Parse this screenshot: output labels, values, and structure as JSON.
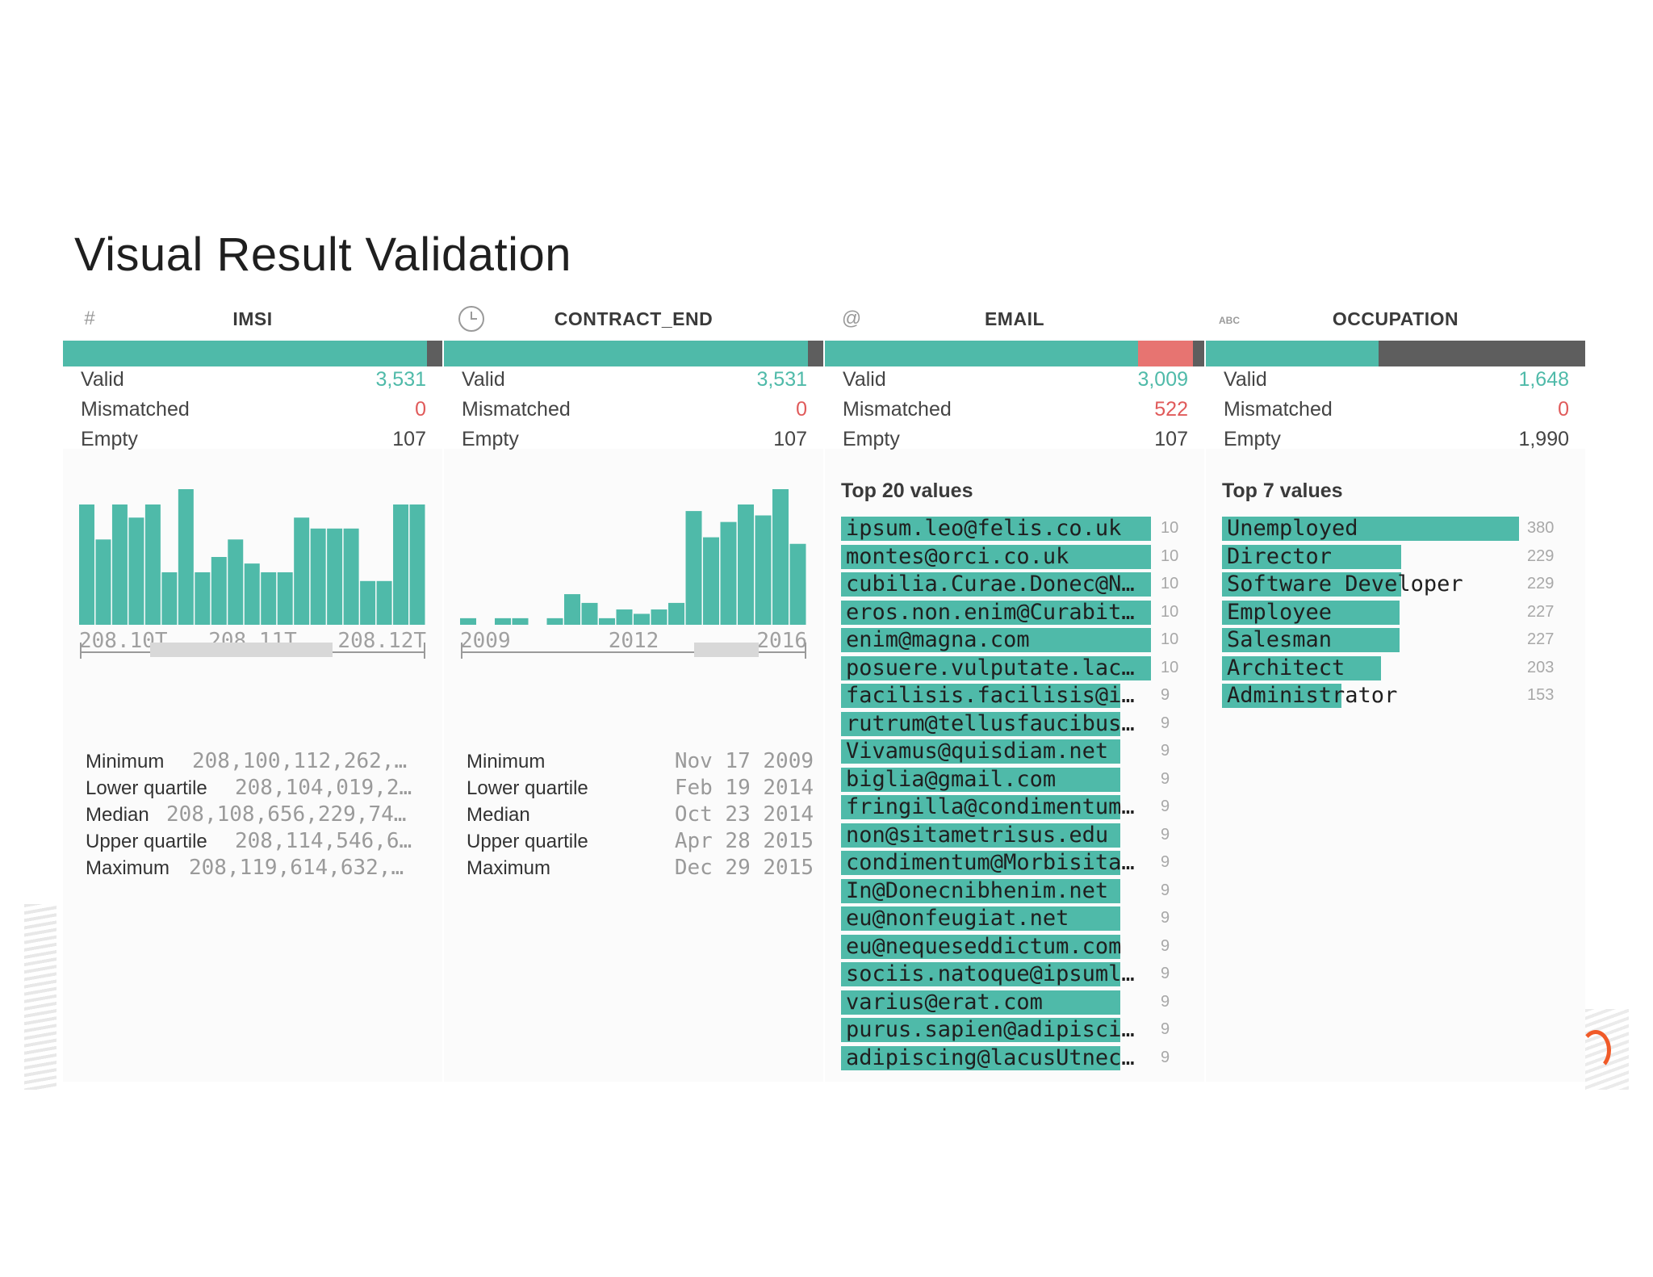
{
  "page_title": "Visual Result Validation",
  "colors": {
    "valid": "#4fbaa9",
    "mismatched": "#e77471",
    "empty": "#5e5e5e"
  },
  "columns": [
    {
      "type_icon": "hash-icon",
      "type_glyph": "#",
      "name": "IMSI",
      "quality": {
        "valid_fraction": 0.96,
        "mismatched_fraction": 0.0,
        "empty_fraction": 0.04
      },
      "stats": {
        "valid_label": "Valid",
        "valid": "3,531",
        "mismatched_label": "Mismatched",
        "mismatched": "0",
        "empty_label": "Empty",
        "empty": "107"
      },
      "histogram": {
        "values": [
          55,
          39,
          55,
          49,
          55,
          24,
          62,
          24,
          31,
          39,
          28,
          24,
          24,
          49,
          44,
          44,
          44,
          20,
          20,
          55,
          55
        ],
        "axis_labels": [
          "208.10T",
          "208.11T",
          "208.12T"
        ]
      },
      "summary": [
        {
          "label": "Minimum",
          "value": "208,100,112,262,…"
        },
        {
          "label": "Lower quartile",
          "value": "208,104,019,2…"
        },
        {
          "label": "Median",
          "value": "208,108,656,229,74…"
        },
        {
          "label": "Upper quartile",
          "value": "208,114,546,6…"
        },
        {
          "label": "Maximum",
          "value": "208,119,614,632,…"
        }
      ]
    },
    {
      "type_icon": "clock-icon",
      "type_glyph": "",
      "name": "CONTRACT_END",
      "quality": {
        "valid_fraction": 0.96,
        "mismatched_fraction": 0.0,
        "empty_fraction": 0.04
      },
      "stats": {
        "valid_label": "Valid",
        "valid": "3,531",
        "mismatched_label": "Mismatched",
        "mismatched": "0",
        "empty_label": "Empty",
        "empty": "107"
      },
      "histogram": {
        "values": [
          3,
          0,
          3,
          3,
          0,
          3,
          14,
          10,
          3,
          7,
          5,
          7,
          10,
          52,
          40,
          47,
          55,
          50,
          62,
          37
        ],
        "axis_labels": [
          "2009",
          "2012",
          "2016"
        ]
      },
      "summary": [
        {
          "label": "Minimum",
          "value": "Nov 17 2009"
        },
        {
          "label": "Lower quartile",
          "value": "Feb 19 2014"
        },
        {
          "label": "Median",
          "value": "Oct 23 2014"
        },
        {
          "label": "Upper quartile",
          "value": "Apr 28 2015"
        },
        {
          "label": "Maximum",
          "value": "Dec 29 2015"
        }
      ]
    },
    {
      "type_icon": "at-sign-icon",
      "type_glyph": "@",
      "name": "EMAIL",
      "quality": {
        "valid_fraction": 0.825,
        "mismatched_fraction": 0.145,
        "empty_fraction": 0.03
      },
      "stats": {
        "valid_label": "Valid",
        "valid": "3,009",
        "mismatched_label": "Mismatched",
        "mismatched": "522",
        "empty_label": "Empty",
        "empty": "107"
      },
      "top_title": "Top 20 values",
      "top_values": [
        {
          "value": "ipsum.leo@felis.co.uk",
          "count": 10
        },
        {
          "value": "montes@orci.co.uk",
          "count": 10
        },
        {
          "value": "cubilia.Curae.Donec@N…",
          "count": 10
        },
        {
          "value": "eros.non.enim@Curabit…",
          "count": 10
        },
        {
          "value": "enim@magna.com",
          "count": 10
        },
        {
          "value": "posuere.vulputate.lac…",
          "count": 10
        },
        {
          "value": "facilisis.facilisis@i…",
          "count": 9
        },
        {
          "value": "rutrum@tellusfaucibus…",
          "count": 9
        },
        {
          "value": "Vivamus@quisdiam.net",
          "count": 9
        },
        {
          "value": "biglia@gmail.com",
          "count": 9
        },
        {
          "value": "fringilla@condimentum…",
          "count": 9
        },
        {
          "value": "non@sitametrisus.edu",
          "count": 9
        },
        {
          "value": "condimentum@Morbisita…",
          "count": 9
        },
        {
          "value": "In@Donecnibhenim.net",
          "count": 9
        },
        {
          "value": "eu@nonfeugiat.net",
          "count": 9
        },
        {
          "value": "eu@nequeseddictum.com",
          "count": 9
        },
        {
          "value": "sociis.natoque@ipsuml…",
          "count": 9
        },
        {
          "value": "varius@erat.com",
          "count": 9
        },
        {
          "value": "purus.sapien@adipisci…",
          "count": 9
        },
        {
          "value": "adipiscing@lacusUtnec…",
          "count": 9
        }
      ]
    },
    {
      "type_icon": "abc-icon",
      "type_glyph": "ABC",
      "name": "OCCUPATION",
      "quality": {
        "valid_fraction": 0.455,
        "mismatched_fraction": 0.0,
        "empty_fraction": 0.545
      },
      "stats": {
        "valid_label": "Valid",
        "valid": "1,648",
        "mismatched_label": "Mismatched",
        "mismatched": "0",
        "empty_label": "Empty",
        "empty": "1,990"
      },
      "top_title": "Top 7 values",
      "top_values": [
        {
          "value": "Unemployed",
          "count": 380
        },
        {
          "value": "Director",
          "count": 229
        },
        {
          "value": "Software Developer",
          "count": 229
        },
        {
          "value": "Employee",
          "count": 227
        },
        {
          "value": "Salesman",
          "count": 227
        },
        {
          "value": "Architect",
          "count": 203
        },
        {
          "value": "Administrator",
          "count": 153
        }
      ]
    }
  ]
}
